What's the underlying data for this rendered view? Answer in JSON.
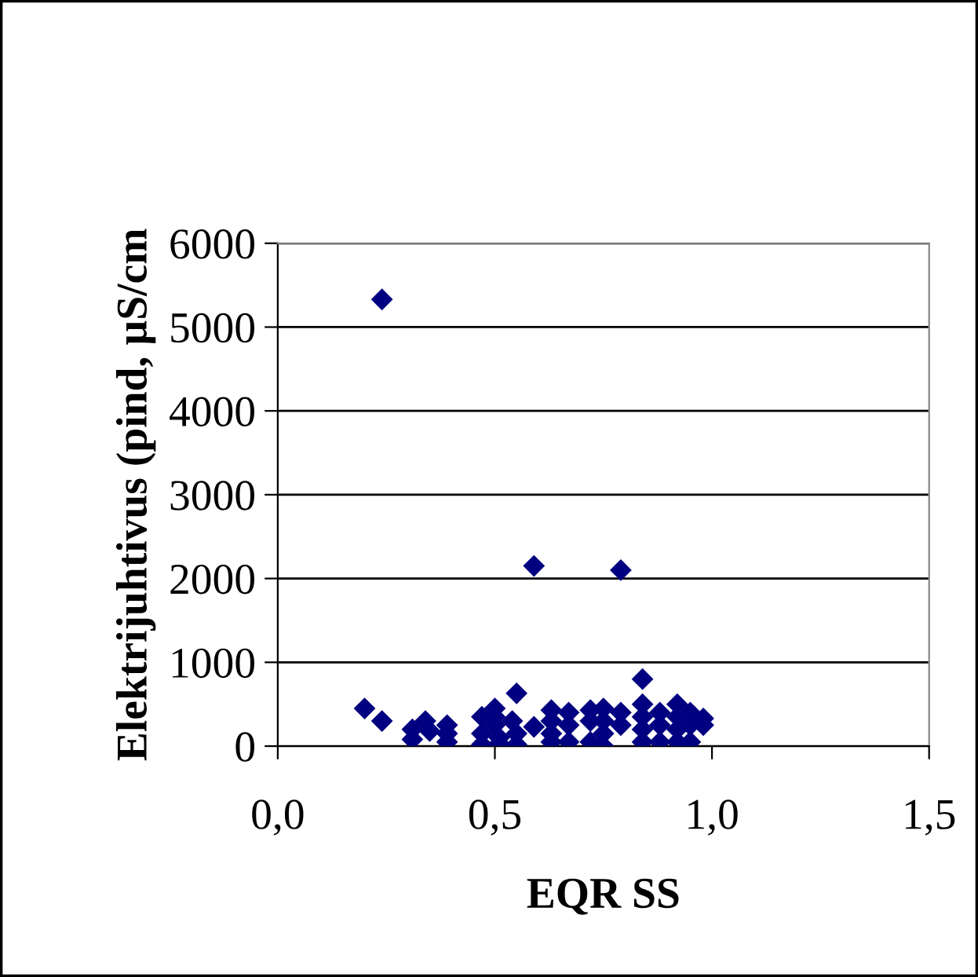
{
  "chart_data": {
    "type": "scatter",
    "xlabel": "EQR SS",
    "ylabel": "Elektrijuhtivus (pind, µS/cm",
    "x": [
      0.2,
      0.24,
      0.24,
      0.31,
      0.31,
      0.34,
      0.35,
      0.39,
      0.39,
      0.39,
      0.47,
      0.47,
      0.47,
      0.5,
      0.5,
      0.5,
      0.51,
      0.51,
      0.54,
      0.55,
      0.55,
      0.55,
      0.59,
      0.59,
      0.63,
      0.63,
      0.63,
      0.63,
      0.67,
      0.67,
      0.67,
      0.72,
      0.72,
      0.72,
      0.75,
      0.75,
      0.75,
      0.75,
      0.79,
      0.79,
      0.79,
      0.84,
      0.84,
      0.84,
      0.84,
      0.84,
      0.88,
      0.88,
      0.88,
      0.92,
      0.92,
      0.92,
      0.92,
      0.95,
      0.95,
      0.95,
      0.98,
      0.98
    ],
    "series": [
      {
        "color": "#000080",
        "values": [
          450,
          300,
          5330,
          200,
          80,
          300,
          180,
          250,
          150,
          50,
          350,
          150,
          20,
          450,
          350,
          250,
          100,
          30,
          300,
          630,
          150,
          20,
          2150,
          230,
          430,
          300,
          150,
          50,
          400,
          250,
          50,
          430,
          300,
          50,
          450,
          300,
          150,
          0,
          2100,
          400,
          250,
          800,
          500,
          350,
          200,
          50,
          400,
          250,
          50,
          500,
          350,
          200,
          50,
          400,
          250,
          50,
          330,
          250
        ]
      }
    ],
    "xlim": [
      0,
      1.5
    ],
    "xticks": [
      {
        "value": 0,
        "label": "0,0"
      },
      {
        "value": 0.5,
        "label": "0,5"
      },
      {
        "value": 1.0,
        "label": "1,0"
      },
      {
        "value": 1.5,
        "label": "1,5"
      }
    ],
    "ylim": [
      0,
      6000
    ],
    "yticks": [
      0,
      1000,
      2000,
      3000,
      4000,
      5000,
      6000
    ],
    "grid": "y",
    "marker": "diamond",
    "legend": false
  }
}
